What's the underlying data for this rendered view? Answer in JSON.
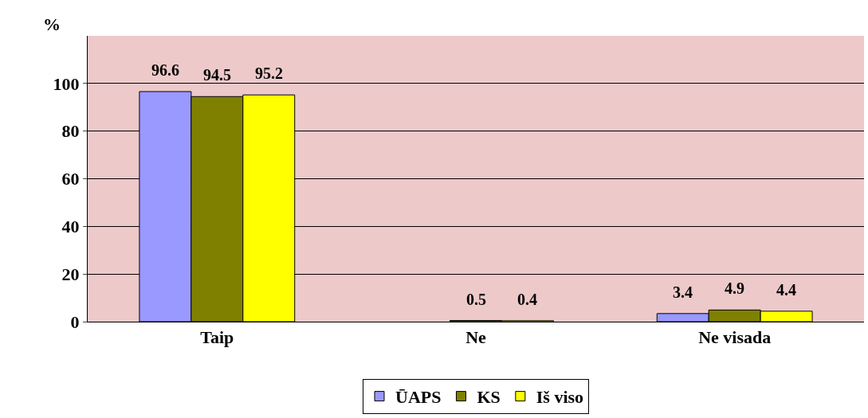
{
  "chart_data": {
    "type": "bar",
    "ylabel": "%",
    "categories": [
      "Taip",
      "Ne",
      "Ne visada"
    ],
    "series": [
      {
        "name": "ŪAPS",
        "color": "#9999ff",
        "values": [
          96.6,
          null,
          3.4
        ],
        "value_labels": [
          "96.6",
          null,
          "3.4"
        ]
      },
      {
        "name": "KS",
        "color": "#808000",
        "values": [
          94.5,
          0.5,
          4.9
        ],
        "value_labels": [
          "94.5",
          "0.5",
          "4.9"
        ]
      },
      {
        "name": "Iš viso",
        "color": "#ffff00",
        "values": [
          95.2,
          0.4,
          4.4
        ],
        "value_labels": [
          "95.2",
          "0.4",
          "4.4"
        ]
      }
    ],
    "ylim": [
      0,
      120
    ],
    "yticks": [
      0,
      20,
      40,
      60,
      80,
      100
    ],
    "grid": "y",
    "legend": "bottom"
  }
}
